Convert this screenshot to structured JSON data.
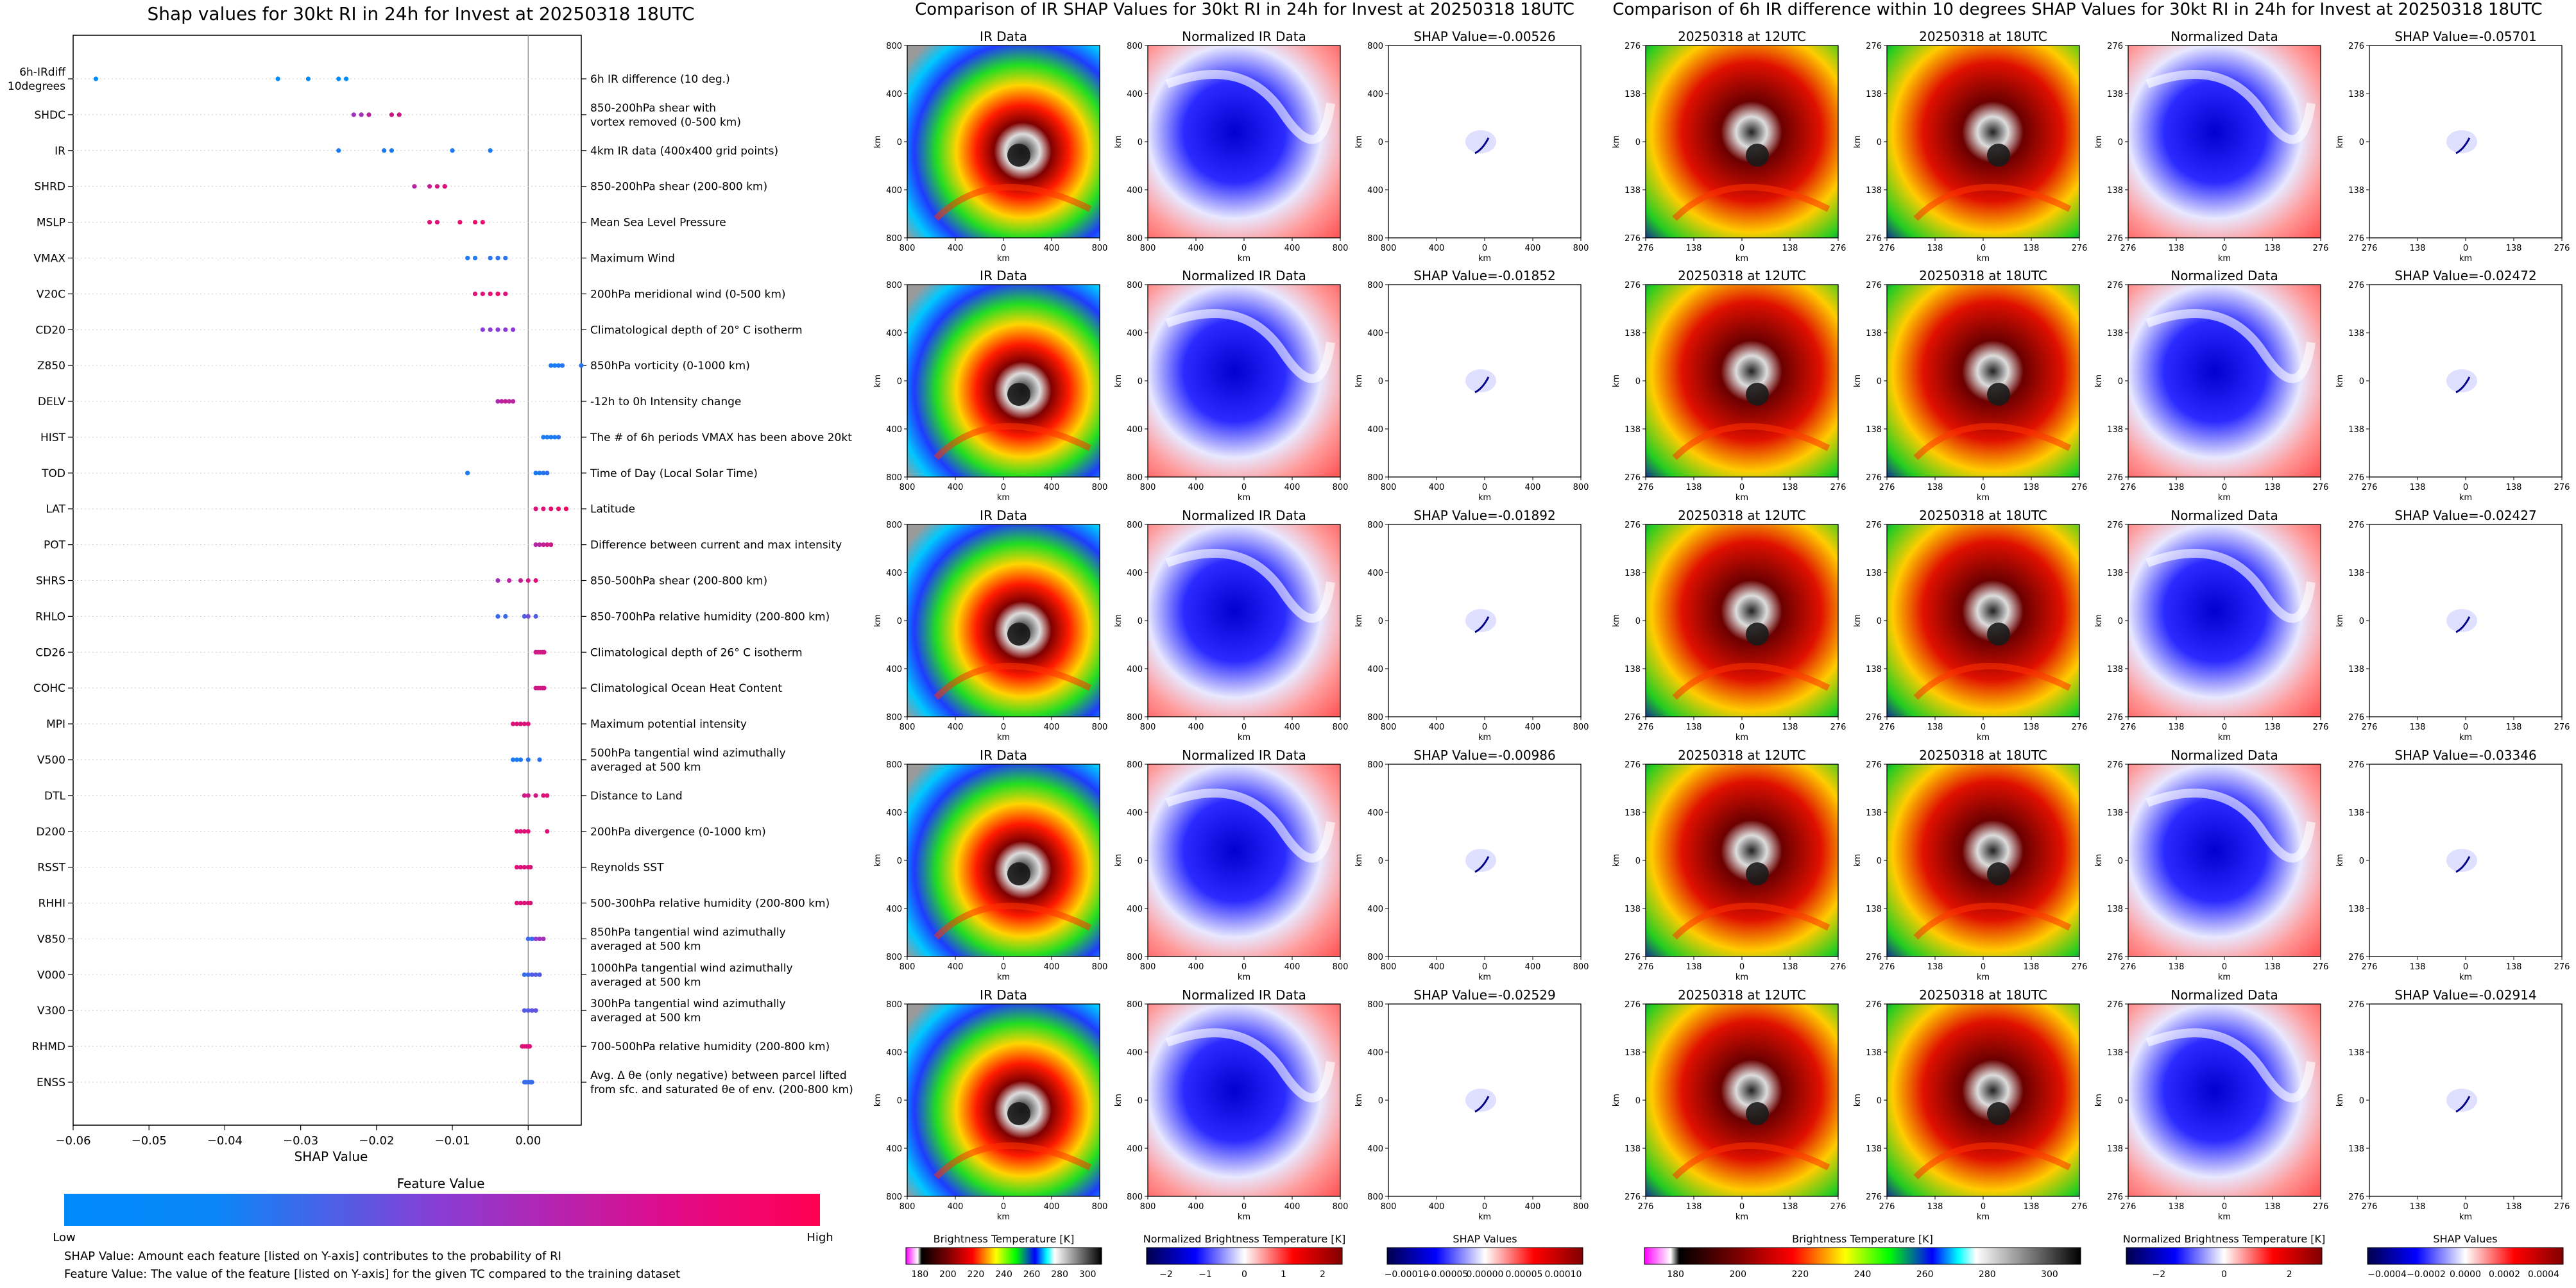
{
  "beeswarm": {
    "title": "Shap values for 30kt RI in 24h for Invest at 20250318 18UTC",
    "xlabel": "SHAP Value",
    "xticks": [
      "−0.06",
      "−0.05",
      "−0.04",
      "−0.03",
      "−0.02",
      "−0.01",
      "0.00"
    ],
    "colorbar": {
      "title": "Feature Value",
      "low": "Low",
      "high": "High"
    },
    "footnotes": [
      "SHAP Value: Amount each feature [listed on Y-axis] contributes to the probability of RI",
      "Feature Value: The value of the feature [listed on Y-axis] for the given TC compared to the training dataset"
    ],
    "features": [
      {
        "code": "6h-IRdiff\n10degrees",
        "desc": "6h IR difference (10 deg.)",
        "points": [
          [
            -0.057,
            0
          ],
          [
            -0.033,
            0
          ],
          [
            -0.029,
            0
          ],
          [
            -0.025,
            0
          ],
          [
            -0.024,
            0
          ]
        ]
      },
      {
        "code": "SHDC",
        "desc": "850-200hPa shear with\nvortex removed (0-500 km)",
        "points": [
          [
            -0.023,
            0.6
          ],
          [
            -0.022,
            0.6
          ],
          [
            -0.021,
            0.7
          ],
          [
            -0.018,
            0.8
          ],
          [
            -0.017,
            0.8
          ]
        ]
      },
      {
        "code": "IR",
        "desc": "4km IR data (400x400 grid points)",
        "points": [
          [
            -0.025,
            0.1
          ],
          [
            -0.019,
            0.1
          ],
          [
            -0.018,
            0.1
          ],
          [
            -0.01,
            0.1
          ],
          [
            -0.005,
            0.1
          ]
        ]
      },
      {
        "code": "SHRD",
        "desc": "850-200hPa shear (200-800 km)",
        "points": [
          [
            -0.015,
            0.7
          ],
          [
            -0.013,
            0.75
          ],
          [
            -0.012,
            0.8
          ],
          [
            -0.011,
            0.8
          ],
          [
            -0.011,
            0.85
          ]
        ]
      },
      {
        "code": "MSLP",
        "desc": "Mean Sea Level Pressure",
        "points": [
          [
            -0.013,
            0.85
          ],
          [
            -0.012,
            0.85
          ],
          [
            -0.009,
            0.9
          ],
          [
            -0.007,
            0.9
          ],
          [
            -0.006,
            0.9
          ]
        ]
      },
      {
        "code": "VMAX",
        "desc": "Maximum Wind",
        "points": [
          [
            -0.008,
            0.1
          ],
          [
            -0.007,
            0.1
          ],
          [
            -0.005,
            0.15
          ],
          [
            -0.004,
            0.15
          ],
          [
            -0.003,
            0.15
          ]
        ]
      },
      {
        "code": "V20C",
        "desc": "200hPa meridional wind (0-500 km)",
        "points": [
          [
            -0.007,
            0.85
          ],
          [
            -0.006,
            0.85
          ],
          [
            -0.005,
            0.9
          ],
          [
            -0.004,
            0.9
          ],
          [
            -0.003,
            0.85
          ]
        ]
      },
      {
        "code": "CD20",
        "desc": "Climatological depth of 20° C isotherm",
        "points": [
          [
            -0.006,
            0.5
          ],
          [
            -0.005,
            0.5
          ],
          [
            -0.004,
            0.5
          ],
          [
            -0.003,
            0.5
          ],
          [
            -0.002,
            0.5
          ]
        ]
      },
      {
        "code": "Z850",
        "desc": "850hPa vorticity (0-1000 km)",
        "points": [
          [
            0.003,
            0.1
          ],
          [
            0.0035,
            0.1
          ],
          [
            0.004,
            0.1
          ],
          [
            0.0045,
            0.15
          ],
          [
            0.007,
            0.15
          ]
        ]
      },
      {
        "code": "DELV",
        "desc": "-12h to 0h Intensity change",
        "points": [
          [
            -0.004,
            0.65
          ],
          [
            -0.0035,
            0.7
          ],
          [
            -0.003,
            0.75
          ],
          [
            -0.0025,
            0.7
          ],
          [
            -0.002,
            0.7
          ]
        ]
      },
      {
        "code": "HIST",
        "desc": "The # of 6h periods VMAX has been above 20kt",
        "points": [
          [
            0.002,
            0.1
          ],
          [
            0.0025,
            0.1
          ],
          [
            0.003,
            0.1
          ],
          [
            0.0035,
            0.1
          ],
          [
            0.004,
            0.15
          ]
        ]
      },
      {
        "code": "TOD",
        "desc": "Time of Day (Local Solar Time)",
        "points": [
          [
            -0.008,
            0.1
          ],
          [
            0.001,
            0.1
          ],
          [
            0.0015,
            0.1
          ],
          [
            0.002,
            0.15
          ],
          [
            0.0025,
            0.15
          ]
        ]
      },
      {
        "code": "LAT",
        "desc": "Latitude",
        "points": [
          [
            0.001,
            0.85
          ],
          [
            0.002,
            0.85
          ],
          [
            0.003,
            0.9
          ],
          [
            0.004,
            0.9
          ],
          [
            0.005,
            0.95
          ]
        ]
      },
      {
        "code": "POT",
        "desc": "Difference between current and max intensity",
        "points": [
          [
            0.001,
            0.7
          ],
          [
            0.0015,
            0.7
          ],
          [
            0.002,
            0.75
          ],
          [
            0.0025,
            0.8
          ],
          [
            0.003,
            0.8
          ]
        ]
      },
      {
        "code": "SHRS",
        "desc": "850-500hPa shear (200-800 km)",
        "points": [
          [
            -0.004,
            0.6
          ],
          [
            -0.0025,
            0.7
          ],
          [
            -0.001,
            0.75
          ],
          [
            0.0,
            0.8
          ],
          [
            0.001,
            0.85
          ]
        ]
      },
      {
        "code": "RHLO",
        "desc": "850-700hPa relative humidity (200-800 km)",
        "points": [
          [
            -0.004,
            0.2
          ],
          [
            -0.003,
            0.2
          ],
          [
            -0.0005,
            0.3
          ],
          [
            0.0,
            0.4
          ],
          [
            0.001,
            0.3
          ]
        ]
      },
      {
        "code": "CD26",
        "desc": "Climatological depth of 26° C isotherm",
        "points": [
          [
            0.001,
            0.8
          ],
          [
            0.0013,
            0.8
          ],
          [
            0.0016,
            0.8
          ],
          [
            0.0019,
            0.8
          ],
          [
            0.0021,
            0.8
          ]
        ]
      },
      {
        "code": "COHC",
        "desc": "Climatological Ocean Heat Content",
        "points": [
          [
            0.001,
            0.8
          ],
          [
            0.0013,
            0.8
          ],
          [
            0.0016,
            0.8
          ],
          [
            0.0019,
            0.8
          ],
          [
            0.0021,
            0.8
          ]
        ]
      },
      {
        "code": "MPI",
        "desc": "Maximum potential intensity",
        "points": [
          [
            -0.002,
            0.85
          ],
          [
            -0.0015,
            0.85
          ],
          [
            -0.001,
            0.85
          ],
          [
            -0.0005,
            0.85
          ],
          [
            0.0,
            0.85
          ]
        ]
      },
      {
        "code": "V500",
        "desc": "500hPa tangential wind azimuthally\naveraged at 500 km",
        "points": [
          [
            -0.002,
            0.1
          ],
          [
            -0.0015,
            0.1
          ],
          [
            -0.001,
            0.1
          ],
          [
            0.0,
            0.15
          ],
          [
            0.0015,
            0.15
          ]
        ]
      },
      {
        "code": "DTL",
        "desc": "Distance to Land",
        "points": [
          [
            -0.0005,
            0.8
          ],
          [
            0.0,
            0.8
          ],
          [
            0.001,
            0.8
          ],
          [
            0.002,
            0.85
          ],
          [
            0.0025,
            0.85
          ]
        ]
      },
      {
        "code": "D200",
        "desc": "200hPa divergence (0-1000 km)",
        "points": [
          [
            -0.0015,
            0.85
          ],
          [
            -0.001,
            0.85
          ],
          [
            -0.0005,
            0.85
          ],
          [
            0.0,
            0.85
          ],
          [
            0.0025,
            0.85
          ]
        ]
      },
      {
        "code": "RSST",
        "desc": "Reynolds SST",
        "points": [
          [
            -0.0015,
            0.85
          ],
          [
            -0.001,
            0.85
          ],
          [
            -0.0005,
            0.85
          ],
          [
            0.0,
            0.85
          ],
          [
            0.0003,
            0.85
          ]
        ]
      },
      {
        "code": "RHHI",
        "desc": "500-300hPa relative humidity (200-800 km)",
        "points": [
          [
            -0.0015,
            0.85
          ],
          [
            -0.001,
            0.85
          ],
          [
            -0.0005,
            0.85
          ],
          [
            0.0,
            0.85
          ],
          [
            0.0003,
            0.85
          ]
        ]
      },
      {
        "code": "V850",
        "desc": "850hPa tangential wind azimuthally\naveraged at 500 km",
        "points": [
          [
            0.0,
            0.2
          ],
          [
            0.0005,
            0.2
          ],
          [
            0.001,
            0.5
          ],
          [
            0.0015,
            0.6
          ],
          [
            0.002,
            0.6
          ]
        ]
      },
      {
        "code": "V000",
        "desc": "1000hPa tangential wind azimuthally\naveraged at 500 km",
        "points": [
          [
            -0.0005,
            0.2
          ],
          [
            0.0,
            0.2
          ],
          [
            0.0005,
            0.3
          ],
          [
            0.001,
            0.3
          ],
          [
            0.0015,
            0.3
          ]
        ]
      },
      {
        "code": "V300",
        "desc": "300hPa tangential wind azimuthally\naveraged at 500 km",
        "points": [
          [
            -0.0005,
            0.3
          ],
          [
            0.0,
            0.3
          ],
          [
            0.0005,
            0.35
          ],
          [
            0.001,
            0.35
          ],
          [
            0.001,
            0.35
          ]
        ]
      },
      {
        "code": "RHMD",
        "desc": "700-500hPa relative humidity (200-800 km)",
        "points": [
          [
            -0.0008,
            0.85
          ],
          [
            -0.0005,
            0.85
          ],
          [
            -0.0002,
            0.85
          ],
          [
            0.0,
            0.85
          ],
          [
            0.0002,
            0.85
          ]
        ]
      },
      {
        "code": "ENSS",
        "desc": "Avg. Δ θe (only negative) between parcel lifted\nfrom sfc. and saturated θe of env. (200-800 km)",
        "points": [
          [
            -0.0005,
            0.2
          ],
          [
            -0.0003,
            0.2
          ],
          [
            0.0,
            0.2
          ],
          [
            0.0003,
            0.2
          ],
          [
            0.0005,
            0.2
          ]
        ]
      }
    ]
  },
  "ir_panel": {
    "title": "Comparison of IR SHAP Values for 30kt RI in 24h for Invest at 20250318 18UTC",
    "col_titles": [
      "IR Data",
      "Normalized IR Data"
    ],
    "shap_titles": [
      "SHAP Value=-0.00526",
      "SHAP Value=-0.01852",
      "SHAP Value=-0.01892",
      "SHAP Value=-0.00986",
      "SHAP Value=-0.02529"
    ],
    "yticks": [
      "800",
      "400",
      "0",
      "400",
      "800"
    ],
    "xticks": [
      "800",
      "400",
      "0",
      "400",
      "800"
    ],
    "axis_label": "km",
    "colorbars": [
      {
        "label": "Brightness Temperature [K]",
        "ticks": [
          "180",
          "200",
          "220",
          "240",
          "260",
          "280",
          "300"
        ]
      },
      {
        "label": "Normalized Brightness Temperature [K]",
        "ticks": [
          "−2",
          "−1",
          "0",
          "1",
          "2"
        ]
      },
      {
        "label": "SHAP Values",
        "ticks": [
          "−0.00010",
          "−0.00005",
          "0.00000",
          "0.00005",
          "0.00010"
        ]
      }
    ]
  },
  "diff_panel": {
    "title": "Comparison of 6h IR difference within 10 degrees SHAP Values for 30kt RI in 24h for Invest at 20250318 18UTC",
    "col_titles": [
      "20250318 at 12UTC",
      "20250318 at 18UTC",
      "Normalized Data"
    ],
    "shap_titles": [
      "SHAP Value=-0.05701",
      "SHAP Value=-0.02472",
      "SHAP Value=-0.02427",
      "SHAP Value=-0.03346",
      "SHAP Value=-0.02914"
    ],
    "yticks": [
      "276",
      "138",
      "0",
      "138",
      "276"
    ],
    "xticks": [
      "276",
      "138",
      "0",
      "138",
      "276"
    ],
    "axis_label": "km",
    "colorbars": [
      {
        "label": "Brightness Temperature [K]",
        "ticks": [
          "180",
          "200",
          "220",
          "240",
          "260",
          "280",
          "300"
        ]
      },
      {
        "label": "Normalized Brightness Temperature [K]",
        "ticks": [
          "−2",
          "0",
          "2"
        ]
      },
      {
        "label": "SHAP Values",
        "ticks": [
          "−0.0004",
          "−0.0002",
          "0.0000",
          "0.0002",
          "0.0004"
        ]
      }
    ]
  },
  "chart_data": [
    {
      "type": "scatter",
      "title": "Shap values for 30kt RI in 24h for Invest at 20250318 18UTC",
      "xlabel": "SHAP Value",
      "xlim": [
        -0.06,
        0.007
      ],
      "legend": "colorbar bottom: Feature Value (Low to High)",
      "series": [
        {
          "name": "6h-IRdiff 10degrees",
          "values": [
            -0.057,
            -0.033,
            -0.029,
            -0.025,
            -0.024
          ]
        },
        {
          "name": "SHDC",
          "values": [
            -0.023,
            -0.022,
            -0.021,
            -0.018,
            -0.017
          ]
        },
        {
          "name": "IR",
          "values": [
            -0.025,
            -0.019,
            -0.018,
            -0.01,
            -0.005
          ]
        },
        {
          "name": "SHRD",
          "values": [
            -0.015,
            -0.013,
            -0.012,
            -0.011,
            -0.011
          ]
        },
        {
          "name": "MSLP",
          "values": [
            -0.013,
            -0.012,
            -0.009,
            -0.007,
            -0.006
          ]
        },
        {
          "name": "VMAX",
          "values": [
            -0.008,
            -0.007,
            -0.005,
            -0.004,
            -0.003
          ]
        },
        {
          "name": "V20C",
          "values": [
            -0.007,
            -0.006,
            -0.005,
            -0.004,
            -0.003
          ]
        },
        {
          "name": "CD20",
          "values": [
            -0.006,
            -0.005,
            -0.004,
            -0.003,
            -0.002
          ]
        },
        {
          "name": "Z850",
          "values": [
            0.003,
            0.0035,
            0.004,
            0.0045,
            0.007
          ]
        },
        {
          "name": "DELV",
          "values": [
            -0.004,
            -0.0035,
            -0.003,
            -0.0025,
            -0.002
          ]
        },
        {
          "name": "HIST",
          "values": [
            0.002,
            0.0025,
            0.003,
            0.0035,
            0.004
          ]
        },
        {
          "name": "TOD",
          "values": [
            -0.008,
            0.001,
            0.0015,
            0.002,
            0.0025
          ]
        },
        {
          "name": "LAT",
          "values": [
            0.001,
            0.002,
            0.003,
            0.004,
            0.005
          ]
        }
      ]
    },
    {
      "type": "heatmap",
      "title": "Comparison of IR SHAP Values for 30kt RI in 24h for Invest at 20250318 18UTC",
      "values": [
        -0.00526,
        -0.01852,
        -0.01892,
        -0.00986,
        -0.02529
      ],
      "xlim": [
        -800,
        800
      ],
      "ylim": [
        -800,
        800
      ]
    },
    {
      "type": "heatmap",
      "title": "Comparison of 6h IR difference within 10 degrees SHAP Values for 30kt RI in 24h for Invest at 20250318 18UTC",
      "values": [
        -0.05701,
        -0.02472,
        -0.02427,
        -0.03346,
        -0.02914
      ],
      "xlim": [
        -276,
        276
      ],
      "ylim": [
        -276,
        276
      ]
    }
  ]
}
